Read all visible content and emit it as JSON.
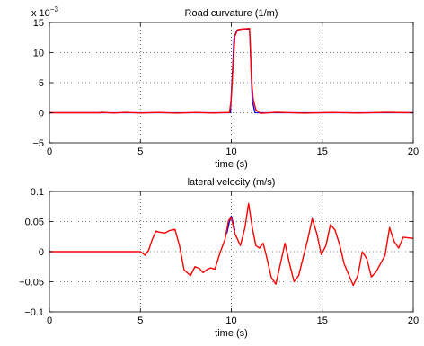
{
  "chart_data": [
    {
      "type": "line",
      "title": "Road curvature (1/m)",
      "xlabel": "time (s)",
      "ylabel": "",
      "y_exponent_label": "x 10",
      "y_exponent_power": "−3",
      "xlim": [
        0,
        20
      ],
      "ylim": [
        -5,
        15
      ],
      "xticks": [
        0,
        5,
        10,
        15,
        20
      ],
      "yticks": [
        -5,
        0,
        5,
        10,
        15
      ],
      "xtick_labels": [
        "0",
        "5",
        "10",
        "15",
        "20"
      ],
      "ytick_labels": [
        "−5",
        "0",
        "5",
        "10",
        "15"
      ],
      "grid": true,
      "series": [
        {
          "color": "#0000ff",
          "x": [
            0,
            9.95,
            10.05,
            10.15,
            10.3,
            10.6,
            11.0,
            11.05,
            11.15,
            11.3,
            20
          ],
          "y": [
            0,
            0,
            6,
            12.5,
            13.7,
            13.9,
            13.9,
            10,
            2,
            0,
            0
          ]
        },
        {
          "color": "#ff0000",
          "x": [
            0,
            2.8,
            2.81,
            3.5,
            4.2,
            5.0,
            6.0,
            7.0,
            8.0,
            9.0,
            9.9,
            10.0,
            10.1,
            10.2,
            10.35,
            10.6,
            11.0,
            11.05,
            11.1,
            11.2,
            11.35,
            11.6,
            12.5,
            14.0,
            15.5,
            17.0,
            18.5,
            20
          ],
          "y": [
            0,
            0,
            0.08,
            -0.05,
            0.06,
            -0.04,
            0.05,
            -0.06,
            0.04,
            -0.05,
            0.05,
            2.5,
            8,
            12.8,
            13.8,
            13.9,
            14.0,
            11,
            6,
            2.3,
            0.5,
            -0.1,
            0.08,
            -0.06,
            0.05,
            -0.05,
            0.06,
            0
          ]
        }
      ]
    },
    {
      "type": "line",
      "title": "lateral velocity (m/s)",
      "xlabel": "time (s)",
      "ylabel": "",
      "xlim": [
        0,
        20
      ],
      "ylim": [
        -0.1,
        0.1
      ],
      "xticks": [
        0,
        5,
        10,
        15,
        20
      ],
      "yticks": [
        -0.1,
        -0.05,
        0,
        0.05,
        0.1
      ],
      "xtick_labels": [
        "0",
        "5",
        "10",
        "15",
        "20"
      ],
      "ytick_labels": [
        "−0.1",
        "−0.05",
        "0",
        "0.05",
        "0.1"
      ],
      "grid": true,
      "series": [
        {
          "color": "#0000ff",
          "x": [
            9.75,
            9.9,
            10.0,
            10.1,
            10.2
          ],
          "y": [
            0.03,
            0.05,
            0.059,
            0.048,
            0.035
          ]
        },
        {
          "color": "#ff0000",
          "x": [
            0,
            5.0,
            5.1,
            5.25,
            5.45,
            5.65,
            5.85,
            6.1,
            6.35,
            6.6,
            6.9,
            7.15,
            7.4,
            7.75,
            8.0,
            8.25,
            8.45,
            8.65,
            8.85,
            9.1,
            9.4,
            9.65,
            9.85,
            10.0,
            10.2,
            10.5,
            10.75,
            10.95,
            11.15,
            11.35,
            11.55,
            11.75,
            11.95,
            12.2,
            12.45,
            12.7,
            12.95,
            13.2,
            13.45,
            13.7,
            13.95,
            14.2,
            14.45,
            14.7,
            14.95,
            15.2,
            15.45,
            15.7,
            15.95,
            16.2,
            16.45,
            16.7,
            16.95,
            17.2,
            17.45,
            17.7,
            17.95,
            18.2,
            18.45,
            18.7,
            18.95,
            19.2,
            19.45,
            19.7,
            20
          ],
          "y": [
            0,
            0,
            -0.002,
            -0.006,
            0.002,
            0.02,
            0.034,
            0.032,
            0.031,
            0.035,
            0.037,
            0.01,
            -0.03,
            -0.04,
            -0.025,
            -0.028,
            -0.035,
            -0.03,
            -0.027,
            -0.029,
            0.0,
            0.02,
            0.052,
            0.057,
            0.03,
            0.01,
            0.04,
            0.08,
            0.04,
            0.01,
            0.006,
            0.014,
            -0.01,
            -0.043,
            -0.054,
            -0.02,
            0.014,
            -0.02,
            -0.05,
            -0.04,
            -0.01,
            0.02,
            0.055,
            0.03,
            -0.005,
            0.01,
            0.045,
            0.036,
            0.012,
            -0.02,
            -0.038,
            -0.056,
            -0.04,
            0.0,
            -0.012,
            -0.042,
            -0.034,
            -0.02,
            -0.006,
            0.04,
            0.017,
            0.006,
            0.024,
            0.023,
            0.022
          ]
        }
      ]
    }
  ]
}
